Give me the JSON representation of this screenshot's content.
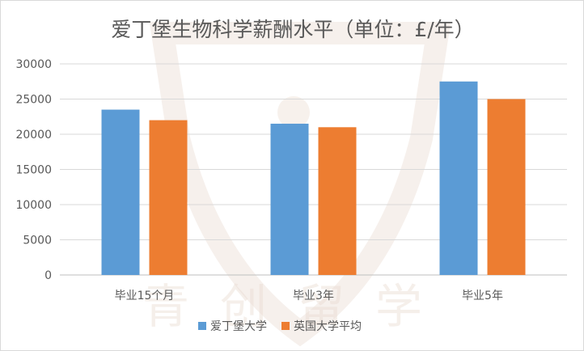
{
  "chart_data": {
    "type": "bar",
    "title": "爱丁堡生物科学薪酬水平（单位：£/年）",
    "categories": [
      "毕业15个月",
      "毕业3年",
      "毕业5年"
    ],
    "series": [
      {
        "name": "爱丁堡大学",
        "values": [
          23500,
          21500,
          27500
        ],
        "color": "#5b9bd5"
      },
      {
        "name": "英国大学平均",
        "values": [
          22000,
          21000,
          25000
        ],
        "color": "#ed7d31"
      }
    ],
    "ylim": [
      0,
      30000
    ],
    "yticks": [
      0,
      5000,
      10000,
      15000,
      20000,
      25000,
      30000
    ],
    "grid": true,
    "legend_position": "bottom"
  },
  "watermark": {
    "text": "青创留学",
    "color": "#e9dcd2"
  }
}
